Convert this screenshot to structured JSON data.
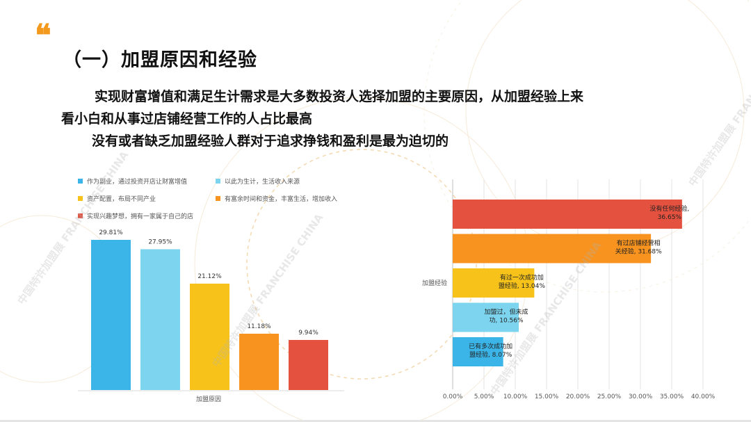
{
  "page": {
    "title": "（一）加盟原因和经验",
    "paragraphs": [
      "实现财富增值和满足生计需求是大多数投资人选择加盟的主要原因，从加盟经验上来",
      "看小白和从事过店铺经营工作的人占比最高",
      "没有或者缺乏加盟经验人群对于追求挣钱和盈利是最为迫切的"
    ],
    "watermark": "中国特许加盟展 FRANCHISE CHINA"
  },
  "chart_data": [
    {
      "type": "bar",
      "xlabel": "加盟原因",
      "categories": [
        "加盟原因"
      ],
      "series": [
        {
          "name": "作为副业，通过投资开店让财富增值",
          "value": 29.81,
          "label": "29.81%",
          "color": "#3bb5e8"
        },
        {
          "name": "以此为生计，生活收入来源",
          "value": 27.95,
          "label": "27.95%",
          "color": "#7dd4ef"
        },
        {
          "name": "资产配置，布局不同产业",
          "value": 21.12,
          "label": "21.12%",
          "color": "#f7c31a"
        },
        {
          "name": "有富余时间和资金，丰富生活，增加收入",
          "value": 11.18,
          "label": "11.18%",
          "color": "#f7931e"
        },
        {
          "name": "实现兴趣梦想，拥有一家属于自己的店",
          "value": 9.94,
          "label": "9.94%",
          "color": "#e4513f"
        }
      ],
      "ylim": [
        0,
        32
      ],
      "legend": "top-left"
    },
    {
      "type": "bar",
      "orientation": "horizontal",
      "ylabel": "加盟经验",
      "categories": [
        "没有任何经验",
        "有过店铺经营相关经验",
        "有过一次成功加盟经验",
        "加盟过，但未成功",
        "已有多次成功加盟经验"
      ],
      "values": [
        36.65,
        31.68,
        13.04,
        10.56,
        8.07
      ],
      "labels": [
        [
          "没有任何经验,",
          "36.65%"
        ],
        [
          "有过店铺经营相",
          "关经验, 31.68%"
        ],
        [
          "有过一次成功加",
          "盟经验, 13.04%"
        ],
        [
          "加盟过，但未成",
          "功, 10.56%"
        ],
        [
          "已有多次成功加",
          "盟经验, 8.07%"
        ]
      ],
      "colors": [
        "#e4513f",
        "#f7931e",
        "#f7c31a",
        "#7dd4ef",
        "#3bb5e8"
      ],
      "xlim": [
        0,
        40
      ],
      "xticks": [
        "0.00%",
        "5.00%",
        "10.00%",
        "15.00%",
        "20.00%",
        "25.00%",
        "30.00%",
        "35.00%",
        "40.00%"
      ],
      "grid": true
    }
  ]
}
